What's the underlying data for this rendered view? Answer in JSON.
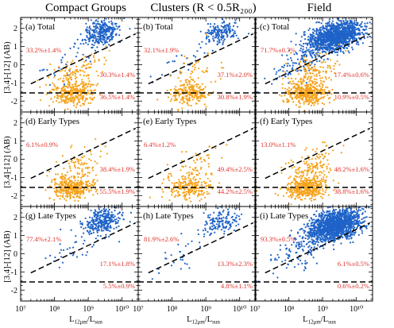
{
  "column_titles": [
    "Compact Groups",
    "Clusters (R < 0.5R₂₀₀)",
    "Field"
  ],
  "ylabel": "[3.4]-[12] (AB)",
  "xlabel_main": "L",
  "xlabel_sub": "12μm",
  "xlabel_div": "/L",
  "xlabel_sub2": "sun",
  "colors": {
    "early": "#f5a21a",
    "late": "#1f63c8",
    "text": "#e0312b",
    "line": "#000000"
  },
  "chart_data": [
    {
      "type": "scatter",
      "panel": "(a) Total",
      "xscale": "log",
      "xlim": [
        10000000,
        30000000000
      ],
      "ylim": [
        -2.6,
        2.6
      ],
      "xticks": [
        "10⁷",
        "10⁸",
        "10⁹",
        "10¹⁰"
      ],
      "yticks": [
        "2",
        "1",
        "0",
        "-1",
        "-2"
      ],
      "series": [
        "late",
        "early"
      ],
      "npoints": [
        330,
        400
      ],
      "percentages": {
        "upper": "33.2%±1.4%",
        "middle": "30.3%±1.4%",
        "lower": "36.5%±1.4%"
      }
    },
    {
      "type": "scatter",
      "panel": "(b) Total",
      "xscale": "log",
      "xlim": [
        10000000,
        30000000000
      ],
      "ylim": [
        -2.6,
        2.6
      ],
      "series": [
        "late",
        "early"
      ],
      "npoints": [
        190,
        260
      ],
      "percentages": {
        "upper": "32.1%±1.9%",
        "middle": "37.1%±2.0%",
        "lower": "30.8%±1.9%"
      }
    },
    {
      "type": "scatter",
      "panel": "(c) Total",
      "xscale": "log",
      "xlim": [
        10000000,
        30000000000
      ],
      "ylim": [
        -2.6,
        2.6
      ],
      "series": [
        "late",
        "early"
      ],
      "npoints": [
        1400,
        500
      ],
      "percentages": {
        "upper": "71.7%±0.7%",
        "middle": "17.4%±0.6%",
        "lower": "10.9%±0.5%"
      }
    },
    {
      "type": "scatter",
      "panel": "(d) Early Types",
      "xscale": "log",
      "xlim": [
        10000000,
        30000000000
      ],
      "ylim": [
        -2.6,
        2.6
      ],
      "series": [
        "early"
      ],
      "npoints": [
        420
      ],
      "percentages": {
        "upper": "6.1%±0.9%",
        "middle": "38.4%±1.9%",
        "lower": "55.5%±1.9%"
      }
    },
    {
      "type": "scatter",
      "panel": "(e) Early Types",
      "xscale": "log",
      "xlim": [
        10000000,
        30000000000
      ],
      "ylim": [
        -2.6,
        2.6
      ],
      "series": [
        "early"
      ],
      "npoints": [
        280
      ],
      "percentages": {
        "upper": "6.4%±1.2%",
        "middle": "49.4%±2.5%",
        "lower": "44.2%±2.5%"
      }
    },
    {
      "type": "scatter",
      "panel": "(f) Early Types",
      "xscale": "log",
      "xlim": [
        10000000,
        30000000000
      ],
      "ylim": [
        -2.6,
        2.6
      ],
      "series": [
        "early"
      ],
      "npoints": [
        520
      ],
      "percentages": {
        "upper": "13.0%±1.1%",
        "middle": "48.2%±1.6%",
        "lower": "38.8%±1.6%"
      }
    },
    {
      "type": "scatter",
      "panel": "(g) Late Types",
      "xscale": "log",
      "xlim": [
        10000000,
        30000000000
      ],
      "ylim": [
        -2.6,
        2.6
      ],
      "series": [
        "late"
      ],
      "npoints": [
        330
      ],
      "percentages": {
        "upper": "77.4%±2.1%",
        "middle": "17.1%±1.8%",
        "lower": "5.5%±0.9%"
      }
    },
    {
      "type": "scatter",
      "panel": "(h) Late Types",
      "xscale": "log",
      "xlim": [
        10000000,
        30000000000
      ],
      "ylim": [
        -2.6,
        2.6
      ],
      "series": [
        "late"
      ],
      "npoints": [
        170
      ],
      "percentages": {
        "upper": "81.9%±2.6%",
        "middle": "13.3%±2.3%",
        "lower": "4.8%±1.1%"
      }
    },
    {
      "type": "scatter",
      "panel": "(i) Late Types",
      "xscale": "log",
      "xlim": [
        10000000,
        30000000000
      ],
      "ylim": [
        -2.6,
        2.6
      ],
      "series": [
        "late"
      ],
      "npoints": [
        1500
      ],
      "percentages": {
        "upper": "93.3%±0.5%",
        "middle": "6.1%±0.5%",
        "lower": "0.6%±0.2%"
      }
    }
  ]
}
